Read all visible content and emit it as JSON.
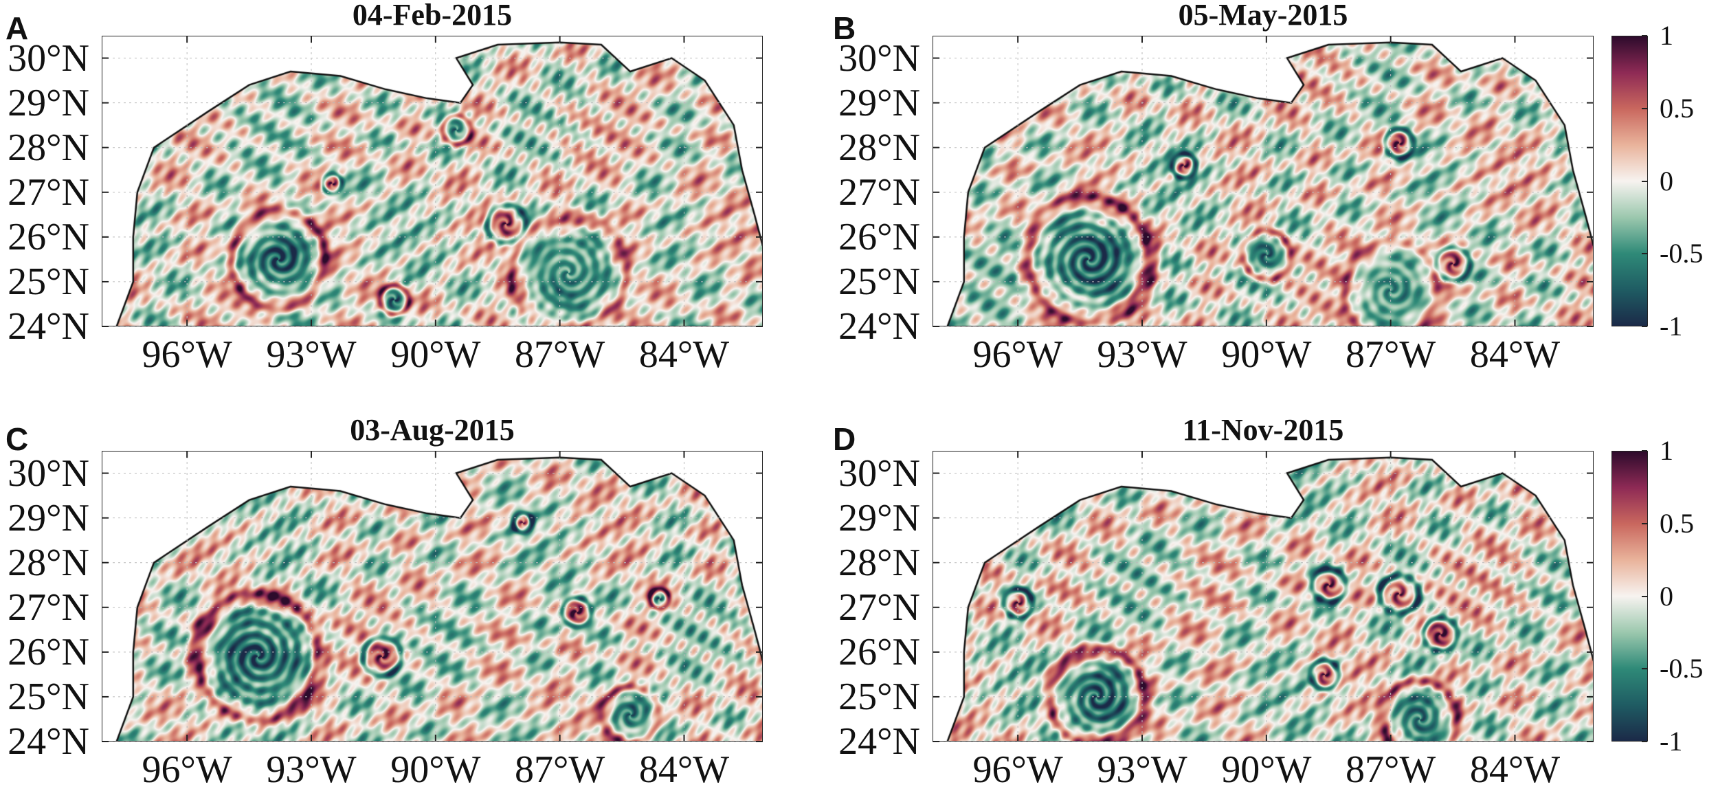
{
  "chart_data": {
    "type": "heatmap",
    "panels": [
      {
        "label": "A",
        "title": "04-Feb-2015",
        "colorbar": false
      },
      {
        "label": "B",
        "title": "05-May-2015",
        "colorbar": true
      },
      {
        "label": "C",
        "title": "03-Aug-2015",
        "colorbar": false
      },
      {
        "label": "D",
        "title": "11-Nov-2015",
        "colorbar": true
      }
    ],
    "lat_ticks": [
      {
        "value": 30,
        "label": "30°N"
      },
      {
        "value": 29,
        "label": "29°N"
      },
      {
        "value": 28,
        "label": "28°N"
      },
      {
        "value": 27,
        "label": "27°N"
      },
      {
        "value": 26,
        "label": "26°N"
      },
      {
        "value": 25,
        "label": "25°N"
      },
      {
        "value": 24,
        "label": "24°N"
      }
    ],
    "lon_ticks": [
      {
        "value": -96,
        "label": "96°W"
      },
      {
        "value": -93,
        "label": "93°W"
      },
      {
        "value": -90,
        "label": "90°W"
      },
      {
        "value": -87,
        "label": "87°W"
      },
      {
        "value": -84,
        "label": "84°W"
      }
    ],
    "xlim": [
      -98.06,
      -82.1
    ],
    "ylim": [
      24,
      30.5
    ],
    "grid": true,
    "colorbar": {
      "range": [
        -1,
        1
      ],
      "ticks": [
        {
          "value": 1,
          "label": "1"
        },
        {
          "value": 0.5,
          "label": "0.5"
        },
        {
          "value": 0,
          "label": "0"
        },
        {
          "value": -0.5,
          "label": "-0.5"
        },
        {
          "value": -1,
          "label": "-1"
        }
      ],
      "colormap": [
        {
          "v": -1,
          "color": "#1b2a48"
        },
        {
          "v": -0.75,
          "color": "#1f5c63"
        },
        {
          "v": -0.5,
          "color": "#2f8a78"
        },
        {
          "v": -0.25,
          "color": "#9cc8ae"
        },
        {
          "v": 0,
          "color": "#f7f3f0"
        },
        {
          "v": 0.25,
          "color": "#e9b39b"
        },
        {
          "v": 0.5,
          "color": "#c9675e"
        },
        {
          "v": 0.75,
          "color": "#8e2a55"
        },
        {
          "v": 1,
          "color": "#2d0b2c"
        }
      ]
    }
  }
}
